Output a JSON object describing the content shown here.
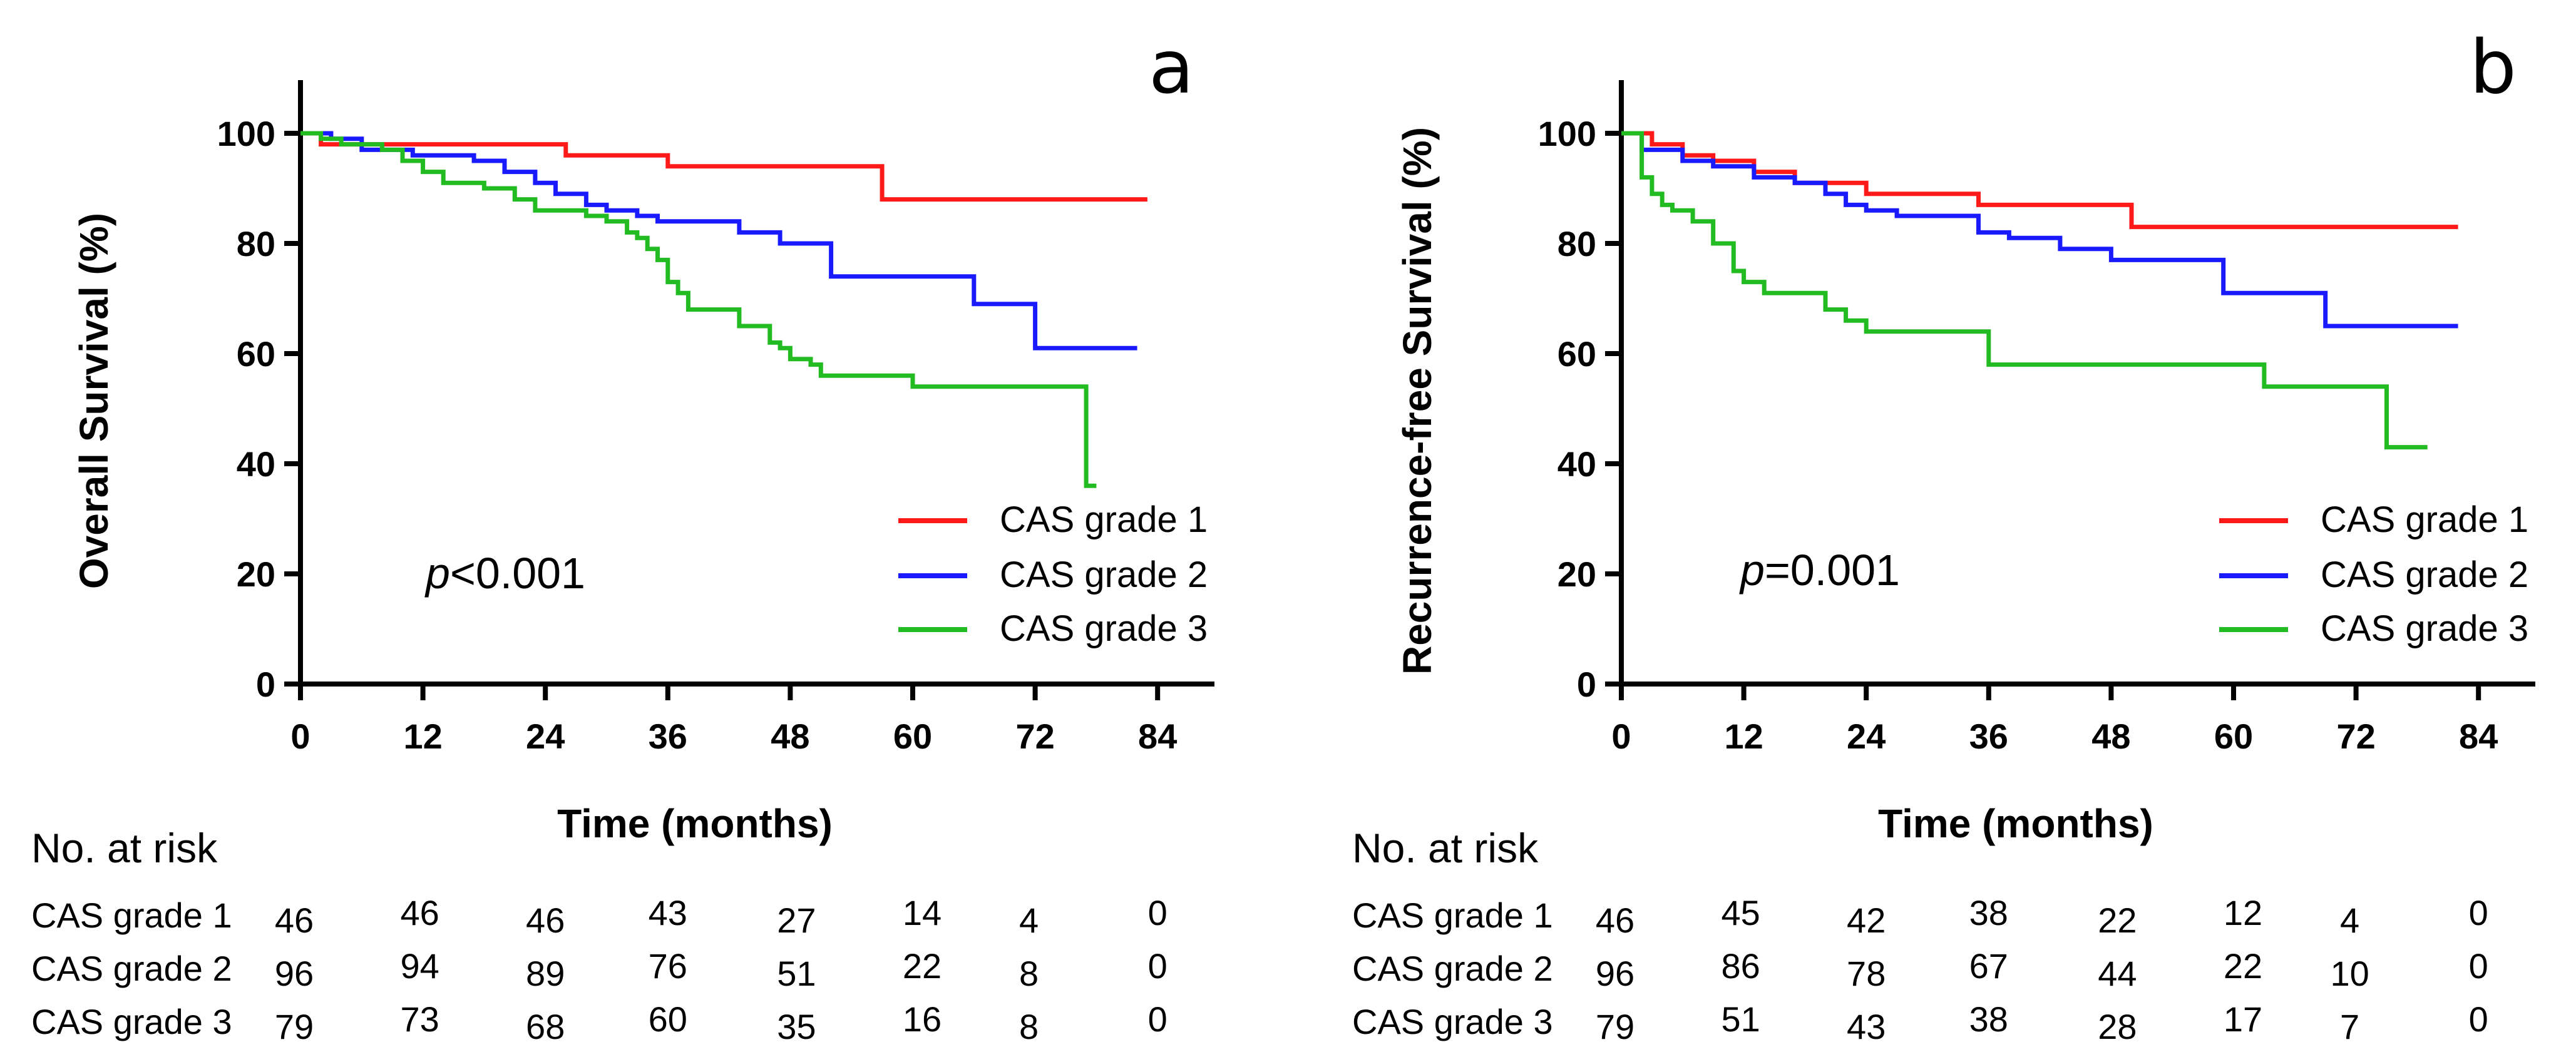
{
  "chart_data": [
    {
      "type": "line",
      "panel_label": "a",
      "title": "",
      "xlabel": "Time (months)",
      "ylabel": "Overall Survival (%)",
      "xlim": [
        0,
        90
      ],
      "ylim": [
        0,
        110
      ],
      "x_ticks": [
        "0",
        "12",
        "24",
        "36",
        "48",
        "60",
        "72",
        "84"
      ],
      "y_ticks": [
        "0",
        "20",
        "40",
        "60",
        "80",
        "100"
      ],
      "legend": [
        "CAS grade 1",
        "CAS grade 2",
        "CAS grade 3"
      ],
      "p_prefix": "p",
      "p_value": "<0.001",
      "series": [
        {
          "name": "CAS grade 1",
          "color": "#ff1a1a",
          "x": [
            0,
            2,
            4,
            26,
            36,
            57,
            83
          ],
          "y": [
            100,
            98,
            98,
            96,
            94,
            88,
            88
          ]
        },
        {
          "name": "CAS grade 2",
          "color": "#1a1aff",
          "x": [
            0,
            3,
            6,
            11,
            17,
            20,
            23,
            25,
            28,
            30,
            33,
            35,
            43,
            47,
            52,
            66,
            72,
            82
          ],
          "y": [
            100,
            99,
            97,
            96,
            95,
            93,
            91,
            89,
            87,
            86,
            85,
            84,
            82,
            80,
            74,
            69,
            61,
            61
          ],
          "censor_end": true
        },
        {
          "name": "CAS grade 3",
          "color": "#22bb22",
          "x": [
            0,
            2,
            4,
            8,
            10,
            12,
            14,
            18,
            21,
            23,
            28,
            30,
            32,
            33,
            34,
            35,
            36,
            37,
            38,
            40,
            43,
            46,
            47,
            48,
            50,
            51,
            60,
            77,
            78
          ],
          "y": [
            100,
            99,
            98,
            97,
            95,
            93,
            91,
            90,
            88,
            86,
            85,
            84,
            82,
            81,
            79,
            77,
            73,
            71,
            68,
            68,
            65,
            62,
            61,
            59,
            58,
            56,
            54,
            36,
            36
          ]
        }
      ],
      "risk_table": {
        "title": "No. at risk",
        "rows": [
          {
            "label": "CAS grade 1",
            "values": [
              "46",
              "46",
              "46",
              "43",
              "27",
              "14",
              "4",
              "0"
            ]
          },
          {
            "label": "CAS grade 2",
            "values": [
              "96",
              "94",
              "89",
              "76",
              "51",
              "22",
              "8",
              "0"
            ]
          },
          {
            "label": "CAS grade 3",
            "values": [
              "79",
              "73",
              "68",
              "60",
              "35",
              "16",
              "8",
              "0"
            ]
          }
        ]
      }
    },
    {
      "type": "line",
      "panel_label": "b",
      "title": "",
      "xlabel": "Time (months)",
      "ylabel": "Recurrence-free Survival (%)",
      "xlim": [
        0,
        90
      ],
      "ylim": [
        0,
        110
      ],
      "x_ticks": [
        "0",
        "12",
        "24",
        "36",
        "48",
        "60",
        "72",
        "84"
      ],
      "y_ticks": [
        "0",
        "20",
        "40",
        "60",
        "80",
        "100"
      ],
      "legend": [
        "CAS grade 1",
        "CAS grade 2",
        "CAS grade 3"
      ],
      "p_prefix": "p",
      "p_value": "=0.001",
      "series": [
        {
          "name": "CAS grade 1",
          "color": "#ff1a1a",
          "x": [
            0,
            3,
            6,
            9,
            13,
            17,
            24,
            35,
            50,
            82
          ],
          "y": [
            100,
            98,
            96,
            95,
            93,
            91,
            89,
            87,
            83,
            83
          ]
        },
        {
          "name": "CAS grade 2",
          "color": "#1a1aff",
          "x": [
            0,
            2,
            6,
            9,
            13,
            17,
            20,
            22,
            24,
            27,
            30,
            35,
            38,
            43,
            48,
            53,
            59,
            69,
            82
          ],
          "y": [
            100,
            97,
            95,
            94,
            92,
            91,
            89,
            87,
            86,
            85,
            85,
            82,
            81,
            79,
            77,
            77,
            71,
            65,
            65
          ]
        },
        {
          "name": "CAS grade 3",
          "color": "#22bb22",
          "x": [
            0,
            2,
            3,
            4,
            5,
            7,
            9,
            11,
            12,
            14,
            17,
            20,
            22,
            24,
            33,
            36,
            40,
            60,
            63,
            75,
            79
          ],
          "y": [
            100,
            92,
            89,
            87,
            86,
            84,
            80,
            75,
            73,
            71,
            71,
            68,
            66,
            64,
            64,
            58,
            58,
            58,
            54,
            43,
            43
          ]
        }
      ],
      "risk_table": {
        "title": "No. at risk",
        "rows": [
          {
            "label": "CAS grade 1",
            "values": [
              "46",
              "45",
              "42",
              "38",
              "22",
              "12",
              "4",
              "0"
            ]
          },
          {
            "label": "CAS grade 2",
            "values": [
              "96",
              "86",
              "78",
              "67",
              "44",
              "22",
              "10",
              "0"
            ]
          },
          {
            "label": "CAS grade 3",
            "values": [
              "79",
              "51",
              "43",
              "38",
              "28",
              "17",
              "7",
              "0"
            ]
          }
        ]
      }
    }
  ]
}
